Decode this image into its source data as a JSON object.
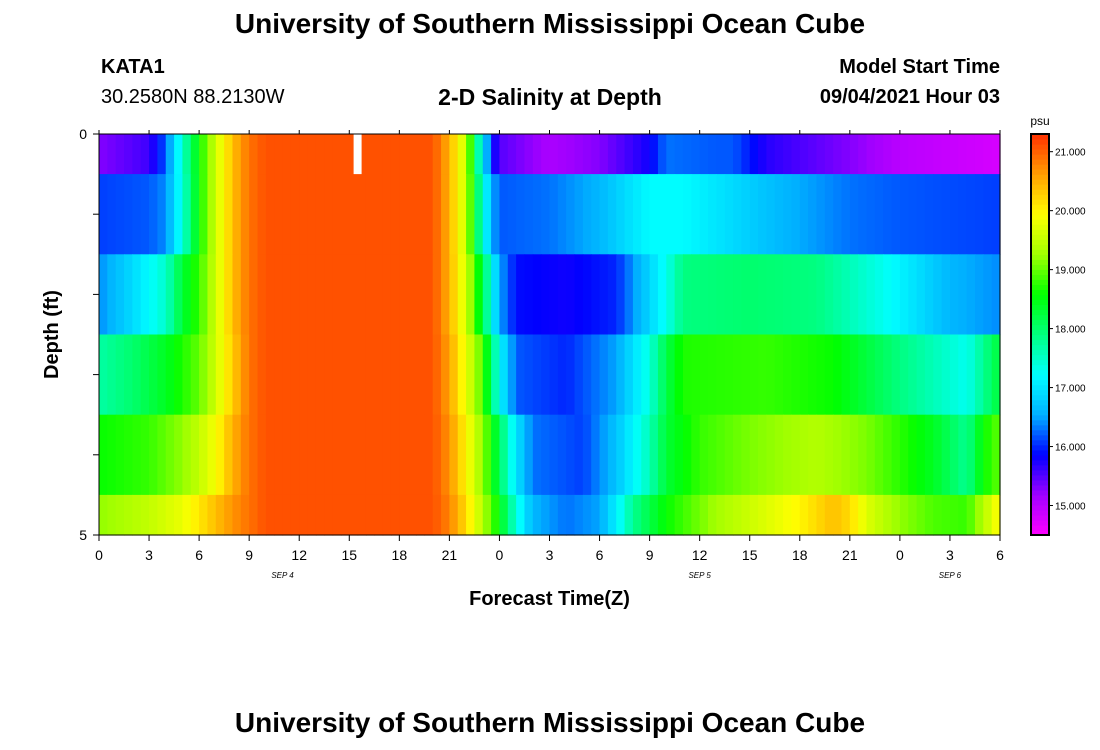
{
  "header": {
    "title": "University of Southern Mississippi Ocean Cube",
    "station": "KATA1",
    "coordinates": "30.2580N  88.2130W",
    "subtitle": "2-D Salinity at Depth",
    "model_start_label": "Model Start Time",
    "model_start_value": "09/04/2021 Hour 03"
  },
  "footer": {
    "title": "University of Southern Mississippi Ocean Cube"
  },
  "colorbar": {
    "unit": "psu",
    "tick_labels": [
      "21.000",
      "20.000",
      "19.000",
      "18.000",
      "17.000",
      "16.000",
      "15.000"
    ],
    "tick_values": [
      21,
      20,
      19,
      18,
      17,
      16,
      15
    ],
    "range": [
      14.5,
      21.3
    ],
    "palette": [
      "#ff00ff",
      "#a000ff",
      "#0000ff",
      "#00b0ff",
      "#00ffff",
      "#00ff80",
      "#00ff00",
      "#a0ff00",
      "#ffff00",
      "#ffa000",
      "#ff3000"
    ]
  },
  "chart_data": {
    "type": "heatmap",
    "xlabel": "Forecast Time(Z)",
    "ylabel": "Depth (ft)",
    "x_tick_labels": [
      "0",
      "3",
      "6",
      "9",
      "12",
      "15",
      "18",
      "21",
      "0",
      "3",
      "6",
      "9",
      "12",
      "15",
      "18",
      "21",
      "0",
      "3",
      "6"
    ],
    "x_range_hours": [
      0,
      54
    ],
    "date_labels": [
      {
        "label": "SEP 4",
        "hour": 11
      },
      {
        "label": "SEP 5",
        "hour": 36
      },
      {
        "label": "SEP 6",
        "hour": 51
      }
    ],
    "y_tick_labels": [
      "0",
      "5"
    ],
    "y_range": [
      0,
      5
    ],
    "depth_layers": 5,
    "time_step_hours": 0.5,
    "gap_hour": 15.5,
    "rows": [
      [
        [
          0,
          15.3
        ],
        [
          3,
          15.6
        ],
        [
          4,
          16.2
        ],
        [
          5,
          17.5
        ],
        [
          6,
          18.6
        ],
        [
          7,
          19.6
        ],
        [
          8,
          20.4
        ],
        [
          9,
          20.9
        ],
        [
          10,
          21.1
        ],
        [
          20,
          21.1
        ],
        [
          21,
          20.5
        ],
        [
          22,
          19.5
        ],
        [
          22.8,
          17.5
        ],
        [
          23.5,
          16.0
        ],
        [
          24,
          15.5
        ],
        [
          27,
          15.1
        ],
        [
          30,
          15.3
        ],
        [
          33,
          15.8
        ],
        [
          34,
          16.3
        ],
        [
          37,
          16.2
        ],
        [
          38,
          16.2
        ],
        [
          40,
          15.7
        ],
        [
          45,
          15.3
        ],
        [
          48,
          15.0
        ],
        [
          54,
          14.8
        ]
      ],
      [
        [
          0,
          16.1
        ],
        [
          3,
          16.2
        ],
        [
          4,
          16.4
        ],
        [
          5,
          17.4
        ],
        [
          6,
          18.6
        ],
        [
          7,
          19.6
        ],
        [
          8,
          20.4
        ],
        [
          9,
          20.9
        ],
        [
          10,
          21.1
        ],
        [
          20,
          21.1
        ],
        [
          21,
          20.5
        ],
        [
          22,
          19.5
        ],
        [
          22.8,
          17.8
        ],
        [
          23.5,
          16.6
        ],
        [
          24,
          16.2
        ],
        [
          27,
          16.3
        ],
        [
          30,
          16.6
        ],
        [
          33,
          17.2
        ],
        [
          35,
          17.2
        ],
        [
          38,
          16.9
        ],
        [
          41,
          16.6
        ],
        [
          45,
          16.3
        ],
        [
          48,
          16.2
        ],
        [
          54,
          16.1
        ]
      ],
      [
        [
          0,
          16.4
        ],
        [
          2,
          16.9
        ],
        [
          4,
          17.5
        ],
        [
          5,
          18.3
        ],
        [
          6,
          18.8
        ],
        [
          7,
          19.6
        ],
        [
          8,
          20.4
        ],
        [
          9,
          20.9
        ],
        [
          10,
          21.1
        ],
        [
          20,
          21.1
        ],
        [
          21,
          20.5
        ],
        [
          22,
          19.6
        ],
        [
          23,
          18.2
        ],
        [
          24,
          16.5
        ],
        [
          25,
          15.9
        ],
        [
          28,
          15.8
        ],
        [
          31,
          16.0
        ],
        [
          34,
          17.3
        ],
        [
          35,
          17.9
        ],
        [
          39,
          18.0
        ],
        [
          43,
          17.9
        ],
        [
          47,
          17.3
        ],
        [
          51,
          16.6
        ],
        [
          54,
          16.4
        ]
      ],
      [
        [
          0,
          17.7
        ],
        [
          2,
          18.0
        ],
        [
          4,
          18.4
        ],
        [
          6,
          19.0
        ],
        [
          7,
          19.6
        ],
        [
          8,
          20.3
        ],
        [
          9,
          20.9
        ],
        [
          10,
          21.1
        ],
        [
          20,
          21.1
        ],
        [
          21,
          20.6
        ],
        [
          22,
          19.8
        ],
        [
          23,
          18.9
        ],
        [
          24,
          17.2
        ],
        [
          25,
          16.2
        ],
        [
          28,
          16.0
        ],
        [
          31,
          16.5
        ],
        [
          33,
          17.4
        ],
        [
          34,
          18.2
        ],
        [
          35,
          18.7
        ],
        [
          40,
          18.8
        ],
        [
          44,
          18.6
        ],
        [
          48,
          17.9
        ],
        [
          52,
          17.3
        ],
        [
          54,
          18.3
        ]
      ],
      [
        [
          0,
          18.6
        ],
        [
          3,
          18.8
        ],
        [
          5,
          19.2
        ],
        [
          6,
          19.5
        ],
        [
          7,
          19.9
        ],
        [
          8,
          20.5
        ],
        [
          9,
          20.9
        ],
        [
          10,
          21.1
        ],
        [
          20,
          21.1
        ],
        [
          21,
          20.7
        ],
        [
          22,
          20.0
        ],
        [
          23,
          19.2
        ],
        [
          24,
          18.1
        ],
        [
          25,
          17.0
        ],
        [
          26,
          16.3
        ],
        [
          29,
          16.1
        ],
        [
          31,
          16.7
        ],
        [
          33,
          17.6
        ],
        [
          34,
          18.3
        ],
        [
          36,
          18.8
        ],
        [
          39,
          19.1
        ],
        [
          43,
          19.4
        ],
        [
          46,
          19.1
        ],
        [
          50,
          18.4
        ],
        [
          52,
          17.8
        ],
        [
          53,
          18.6
        ],
        [
          54,
          19.0
        ]
      ],
      [
        [
          0,
          19.2
        ],
        [
          3,
          19.5
        ],
        [
          5,
          19.8
        ],
        [
          6,
          20.1
        ],
        [
          7,
          20.4
        ],
        [
          8,
          20.7
        ],
        [
          9,
          20.9
        ],
        [
          10,
          21.1
        ],
        [
          20,
          21.1
        ],
        [
          21,
          20.8
        ],
        [
          22,
          20.2
        ],
        [
          23,
          19.4
        ],
        [
          24,
          18.5
        ],
        [
          25,
          17.4
        ],
        [
          26,
          16.6
        ],
        [
          28,
          16.3
        ],
        [
          30,
          16.5
        ],
        [
          31,
          17.1
        ],
        [
          32,
          17.8
        ],
        [
          34,
          18.6
        ],
        [
          37,
          19.3
        ],
        [
          40,
          19.7
        ],
        [
          42,
          20.0
        ],
        [
          44,
          20.4
        ],
        [
          45,
          20.2
        ],
        [
          46,
          19.7
        ],
        [
          48,
          19.2
        ],
        [
          50,
          18.9
        ],
        [
          52,
          18.8
        ],
        [
          53,
          19.4
        ],
        [
          54,
          20.0
        ]
      ]
    ]
  }
}
